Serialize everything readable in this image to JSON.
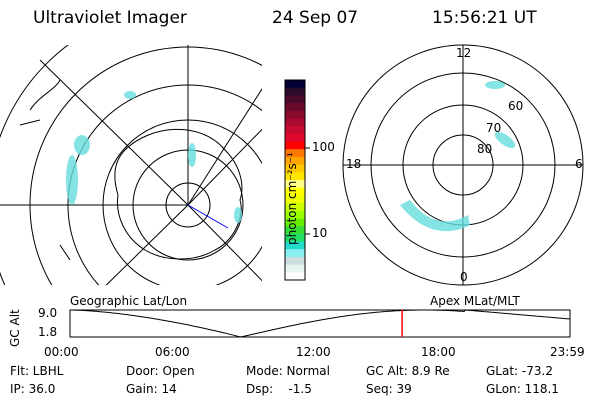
{
  "header": {
    "instrument": "Ultraviolet Imager",
    "date": "24 Sep 07",
    "time": "15:56:21 UT"
  },
  "colorbar": {
    "label": "photon cm⁻²s⁻¹",
    "ticks": [
      "100",
      "10"
    ],
    "colors": [
      "#000033",
      "#2a0a2a",
      "#4a0a2a",
      "#6a0a2a",
      "#8a0a30",
      "#a80a30",
      "#c80a30",
      "#e00a30",
      "#ff0000",
      "#ff7700",
      "#ffa500",
      "#ffc800",
      "#ffe600",
      "#ffff88",
      "#ffff00",
      "#eeff00",
      "#ccff00",
      "#99ff00",
      "#66ee00",
      "#33dd33",
      "#22dd66",
      "#22ddcc",
      "#88eeee",
      "#ccdddd",
      "#e8f4ee",
      "#ffffff"
    ]
  },
  "polar": {
    "labels": {
      "top": "12",
      "bottom": "0",
      "left": "18",
      "right": "6"
    },
    "lat_labels": [
      "80",
      "70",
      "60"
    ]
  },
  "timeline": {
    "left_title": "Geographic Lat/Lon",
    "right_title": "Apex MLat/MLT",
    "ylabel": "GC Alt",
    "ymax": "9.0",
    "ymin": "1.8",
    "xticks": [
      "00:00",
      "06:00",
      "12:00",
      "18:00",
      "23:59"
    ],
    "current_hours": 15.94,
    "marker_color": "#ff0000"
  },
  "info": {
    "flt": "Flt: LBHL",
    "ip": "IP: 36.0",
    "door": "Door: Open",
    "gain": "Gain: 14",
    "mode": "Mode: Normal",
    "dsp": "Dsp:    -1.5",
    "gcalt": "GC Alt: 8.9 Re",
    "seq": "Seq: 39",
    "glat": "GLat: -73.2",
    "glon": "GLon: 118.1"
  }
}
